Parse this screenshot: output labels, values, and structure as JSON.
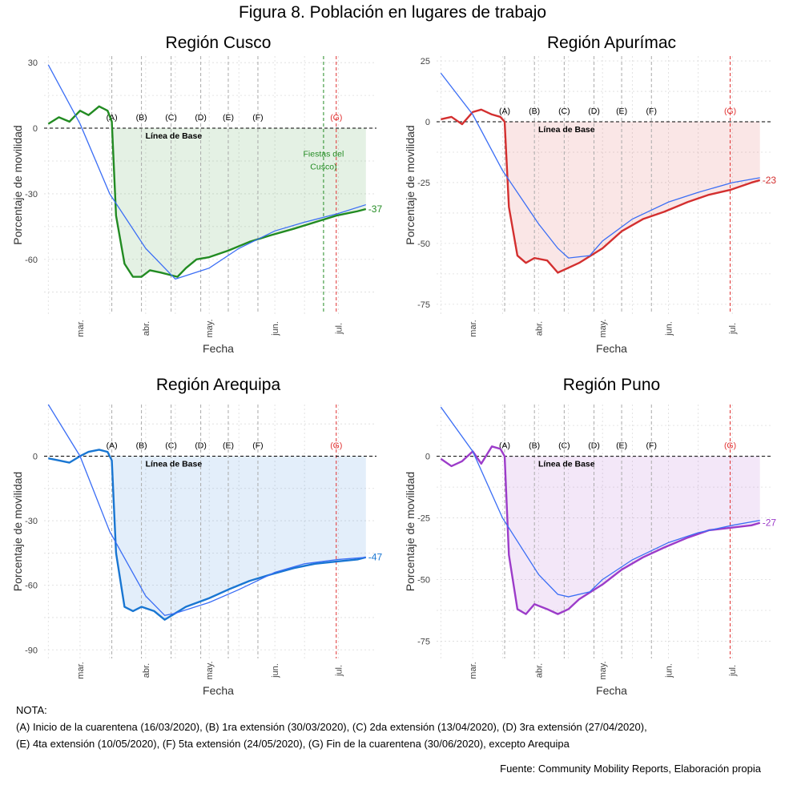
{
  "figure": {
    "title": "Figura 8. Población en lugares de trabajo",
    "note_header": "NOTA:",
    "note_line1": "(A) Inicio de la cuarentena (16/03/2020), (B) 1ra extensión (30/03/2020), (C) 2da extensión (13/04/2020), (D) 3ra extensión (27/04/2020),",
    "note_line2": "(E) 4ta extensión (10/05/2020), (F) 5ta extensión (24/05/2020), (G) Fin de la cuarentena (30/06/2020), excepto Arequipa",
    "source": "Fuente: Community Mobility Reports, Elaboración propia"
  },
  "chart_data": [
    {
      "type": "line",
      "title": "Región Cusco",
      "xlabel": "Fecha",
      "ylabel": "Porcentaje de movilidad",
      "color": "#228B22",
      "x_ticks": [
        "mar.",
        "abr.",
        "may.",
        "jun.",
        "jul."
      ],
      "y_ticks": [
        30,
        0,
        -30,
        -60
      ],
      "ylim": [
        -85,
        33
      ],
      "baseline_label": "Línea de Base",
      "event_labels": [
        "(A)",
        "(B)",
        "(C)",
        "(D)",
        "(E)",
        "(F)",
        "(G)"
      ],
      "event_dates": [
        "2020-03-16",
        "2020-03-30",
        "2020-04-13",
        "2020-04-27",
        "2020-05-10",
        "2020-05-24",
        "2020-06-30"
      ],
      "extra_event": {
        "date": "2020-06-24",
        "label_line1": "Fiestas del",
        "label_line2": "Cusco)",
        "color": "#228B22"
      },
      "end_label": "-37",
      "x_range": [
        "2020-02-15",
        "2020-07-14"
      ],
      "series": [
        {
          "x": [
            "2020-02-15",
            "2020-02-20",
            "2020-02-25",
            "2020-03-01",
            "2020-03-05",
            "2020-03-10",
            "2020-03-14",
            "2020-03-16",
            "2020-03-18",
            "2020-03-22",
            "2020-03-26",
            "2020-03-30",
            "2020-04-03",
            "2020-04-08",
            "2020-04-12",
            "2020-04-16",
            "2020-04-20",
            "2020-04-25",
            "2020-05-01",
            "2020-05-10",
            "2020-05-20",
            "2020-05-30",
            "2020-06-10",
            "2020-06-20",
            "2020-06-30",
            "2020-07-05",
            "2020-07-10",
            "2020-07-14"
          ],
          "y": [
            2,
            5,
            3,
            8,
            6,
            10,
            8,
            3,
            -40,
            -62,
            -68,
            -68,
            -65,
            -66,
            -67,
            -68,
            -64,
            -60,
            -59,
            -56,
            -52,
            -49,
            -46,
            -43,
            -40,
            -39,
            -38,
            -37
          ]
        },
        {
          "x": [
            "2020-02-15",
            "2020-03-01",
            "2020-03-15",
            "2020-04-01",
            "2020-04-10",
            "2020-04-15",
            "2020-05-01",
            "2020-05-15",
            "2020-06-01",
            "2020-06-15",
            "2020-07-01",
            "2020-07-14"
          ],
          "y": [
            29,
            2,
            -30,
            -55,
            -64,
            -69,
            -64,
            -55,
            -47,
            -43,
            -39,
            -35
          ]
        }
      ]
    },
    {
      "type": "line",
      "title": "Región Apurímac",
      "xlabel": "Fecha",
      "ylabel": "Porcentaje de movilidad",
      "color": "#D32F2F",
      "x_ticks": [
        "mar.",
        "abr.",
        "may.",
        "jun.",
        "jul."
      ],
      "y_ticks": [
        25,
        0,
        -25,
        -50,
        -75
      ],
      "ylim": [
        -79,
        27
      ],
      "baseline_label": "Línea de Base",
      "event_labels": [
        "(A)",
        "(B)",
        "(C)",
        "(D)",
        "(E)",
        "(F)",
        "(G)"
      ],
      "event_dates": [
        "2020-03-16",
        "2020-03-30",
        "2020-04-13",
        "2020-04-27",
        "2020-05-10",
        "2020-05-24",
        "2020-06-30"
      ],
      "end_label": "-23",
      "x_range": [
        "2020-02-15",
        "2020-07-14"
      ],
      "series": [
        {
          "x": [
            "2020-02-15",
            "2020-02-20",
            "2020-02-25",
            "2020-03-01",
            "2020-03-05",
            "2020-03-10",
            "2020-03-14",
            "2020-03-16",
            "2020-03-18",
            "2020-03-22",
            "2020-03-26",
            "2020-03-30",
            "2020-04-05",
            "2020-04-10",
            "2020-04-15",
            "2020-04-20",
            "2020-05-01",
            "2020-05-10",
            "2020-05-20",
            "2020-05-30",
            "2020-06-10",
            "2020-06-20",
            "2020-06-30",
            "2020-07-10",
            "2020-07-14"
          ],
          "y": [
            1,
            2,
            -1,
            4,
            5,
            3,
            2,
            0,
            -35,
            -55,
            -58,
            -56,
            -57,
            -62,
            -60,
            -58,
            -52,
            -45,
            -40,
            -37,
            -33,
            -30,
            -28,
            -25,
            -24
          ]
        },
        {
          "x": [
            "2020-02-15",
            "2020-03-01",
            "2020-03-15",
            "2020-04-01",
            "2020-04-10",
            "2020-04-15",
            "2020-04-25",
            "2020-05-01",
            "2020-05-15",
            "2020-06-01",
            "2020-06-15",
            "2020-07-01",
            "2020-07-14"
          ],
          "y": [
            20,
            3,
            -20,
            -42,
            -52,
            -56,
            -55,
            -49,
            -40,
            -33,
            -29,
            -25,
            -23
          ]
        }
      ]
    },
    {
      "type": "line",
      "title": "Región Arequipa",
      "xlabel": "Fecha",
      "ylabel": "Porcentaje de movilidad",
      "color": "#1976D2",
      "x_ticks": [
        "mar.",
        "abr.",
        "may.",
        "jun.",
        "jul."
      ],
      "y_ticks": [
        0,
        -30,
        -60,
        -90
      ],
      "ylim": [
        -94,
        24
      ],
      "baseline_label": "Línea de Base",
      "event_labels": [
        "(A)",
        "(B)",
        "(C)",
        "(D)",
        "(E)",
        "(F)",
        "(G)"
      ],
      "event_dates": [
        "2020-03-16",
        "2020-03-30",
        "2020-04-13",
        "2020-04-27",
        "2020-05-10",
        "2020-05-24",
        "2020-06-30"
      ],
      "end_label": "-47",
      "x_range": [
        "2020-02-15",
        "2020-07-14"
      ],
      "series": [
        {
          "x": [
            "2020-02-15",
            "2020-02-20",
            "2020-02-25",
            "2020-03-01",
            "2020-03-05",
            "2020-03-10",
            "2020-03-14",
            "2020-03-16",
            "2020-03-18",
            "2020-03-22",
            "2020-03-26",
            "2020-03-30",
            "2020-04-05",
            "2020-04-10",
            "2020-04-15",
            "2020-04-20",
            "2020-05-01",
            "2020-05-10",
            "2020-05-20",
            "2020-05-30",
            "2020-06-10",
            "2020-06-20",
            "2020-06-30",
            "2020-07-10",
            "2020-07-14"
          ],
          "y": [
            -1,
            -2,
            -3,
            0,
            2,
            3,
            2,
            -2,
            -45,
            -70,
            -72,
            -70,
            -72,
            -76,
            -73,
            -70,
            -66,
            -62,
            -58,
            -55,
            -52,
            -50,
            -49,
            -48,
            -47
          ]
        },
        {
          "x": [
            "2020-02-15",
            "2020-03-01",
            "2020-03-15",
            "2020-04-01",
            "2020-04-10",
            "2020-04-15",
            "2020-05-01",
            "2020-05-15",
            "2020-06-01",
            "2020-06-15",
            "2020-07-01",
            "2020-07-14"
          ],
          "y": [
            24,
            0,
            -35,
            -65,
            -74,
            -73,
            -68,
            -62,
            -54,
            -50,
            -48,
            -47
          ]
        }
      ]
    },
    {
      "type": "line",
      "title": "Región Puno",
      "xlabel": "Fecha",
      "ylabel": "Porcentaje de movilidad",
      "color": "#9C3CC9",
      "x_ticks": [
        "mar.",
        "abr.",
        "may.",
        "jun.",
        "jul."
      ],
      "y_ticks": [
        0,
        -25,
        -50,
        -75
      ],
      "ylim": [
        -82,
        21
      ],
      "baseline_label": "Línea de Base",
      "event_labels": [
        "(A)",
        "(B)",
        "(C)",
        "(D)",
        "(E)",
        "(F)",
        "(G)"
      ],
      "event_dates": [
        "2020-03-16",
        "2020-03-30",
        "2020-04-13",
        "2020-04-27",
        "2020-05-10",
        "2020-05-24",
        "2020-06-30"
      ],
      "end_label": "-27",
      "x_range": [
        "2020-02-15",
        "2020-07-14"
      ],
      "series": [
        {
          "x": [
            "2020-02-15",
            "2020-02-20",
            "2020-02-25",
            "2020-03-01",
            "2020-03-05",
            "2020-03-10",
            "2020-03-14",
            "2020-03-16",
            "2020-03-18",
            "2020-03-22",
            "2020-03-26",
            "2020-03-30",
            "2020-04-05",
            "2020-04-10",
            "2020-04-15",
            "2020-04-20",
            "2020-05-01",
            "2020-05-10",
            "2020-05-20",
            "2020-05-30",
            "2020-06-10",
            "2020-06-20",
            "2020-06-30",
            "2020-07-10",
            "2020-07-14"
          ],
          "y": [
            -1,
            -4,
            -2,
            2,
            -3,
            4,
            3,
            0,
            -40,
            -62,
            -64,
            -60,
            -62,
            -64,
            -62,
            -58,
            -52,
            -46,
            -41,
            -37,
            -33,
            -30,
            -29,
            -28,
            -27
          ]
        },
        {
          "x": [
            "2020-02-15",
            "2020-03-01",
            "2020-03-15",
            "2020-04-01",
            "2020-04-10",
            "2020-04-15",
            "2020-04-25",
            "2020-05-01",
            "2020-05-15",
            "2020-06-01",
            "2020-06-15",
            "2020-07-01",
            "2020-07-14"
          ],
          "y": [
            20,
            2,
            -25,
            -48,
            -56,
            -57,
            -55,
            -50,
            -42,
            -35,
            -31,
            -28,
            -26
          ]
        }
      ]
    }
  ]
}
